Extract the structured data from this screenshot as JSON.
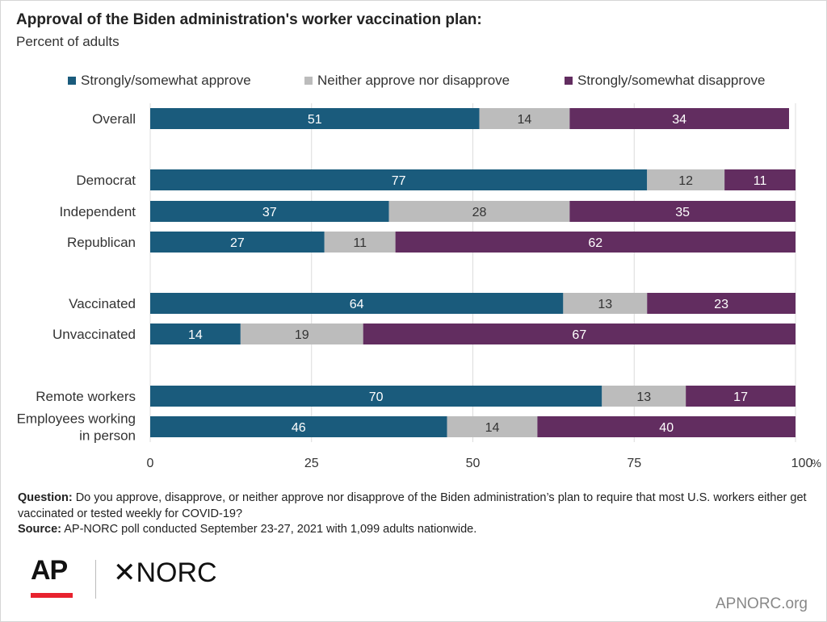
{
  "header": {
    "title": "Approval of the Biden administration's worker vaccination plan:",
    "subtitle": "Percent of adults"
  },
  "colors": {
    "approve": "#1a5b7c",
    "neither": "#bcbcbc",
    "disapprove": "#622d60"
  },
  "footer": {
    "question_label": "Question:",
    "question_text": "Do you approve, disapprove, or neither approve nor disapprove of the Biden administration’s plan to require that most U.S. workers either get vaccinated or tested weekly for COVID-19?",
    "source_label": "Source:",
    "source_text": "AP-NORC poll conducted September 23-27, 2021 with 1,099 adults nationwide.",
    "logo_ap": "AP",
    "logo_norc": "✕NORC",
    "site": "APNORC.org"
  },
  "chart_data": {
    "type": "bar",
    "orientation": "horizontal",
    "stacked": true,
    "title": "Approval of the Biden administration's worker vaccination plan:",
    "subtitle": "Percent of adults",
    "categories": [
      "Overall",
      "Democrat",
      "Independent",
      "Republican",
      "Vaccinated",
      "Unvaccinated",
      "Remote workers",
      "Employees working in person"
    ],
    "category_lines": [
      [
        "Overall"
      ],
      [
        "Democrat"
      ],
      [
        "Independent"
      ],
      [
        "Republican"
      ],
      [
        "Vaccinated"
      ],
      [
        "Unvaccinated"
      ],
      [
        "Remote workers"
      ],
      [
        "Employees working",
        "in person"
      ]
    ],
    "groups": [
      [
        "Overall"
      ],
      [
        "Democrat",
        "Independent",
        "Republican"
      ],
      [
        "Vaccinated",
        "Unvaccinated"
      ],
      [
        "Remote workers",
        "Employees working in person"
      ]
    ],
    "series": [
      {
        "name": "Strongly/somewhat approve",
        "values": [
          51,
          77,
          37,
          27,
          64,
          14,
          70,
          46
        ]
      },
      {
        "name": "Neither approve nor disapprove",
        "values": [
          14,
          12,
          28,
          11,
          13,
          19,
          13,
          14
        ]
      },
      {
        "name": "Strongly/somewhat disapprove",
        "values": [
          34,
          11,
          35,
          62,
          23,
          67,
          17,
          40
        ]
      }
    ],
    "xlim": [
      0,
      100
    ],
    "xticks": [
      "0",
      "25",
      "50",
      "75",
      "100"
    ],
    "x_unit": "%",
    "grid": true,
    "legend_position": "top"
  }
}
